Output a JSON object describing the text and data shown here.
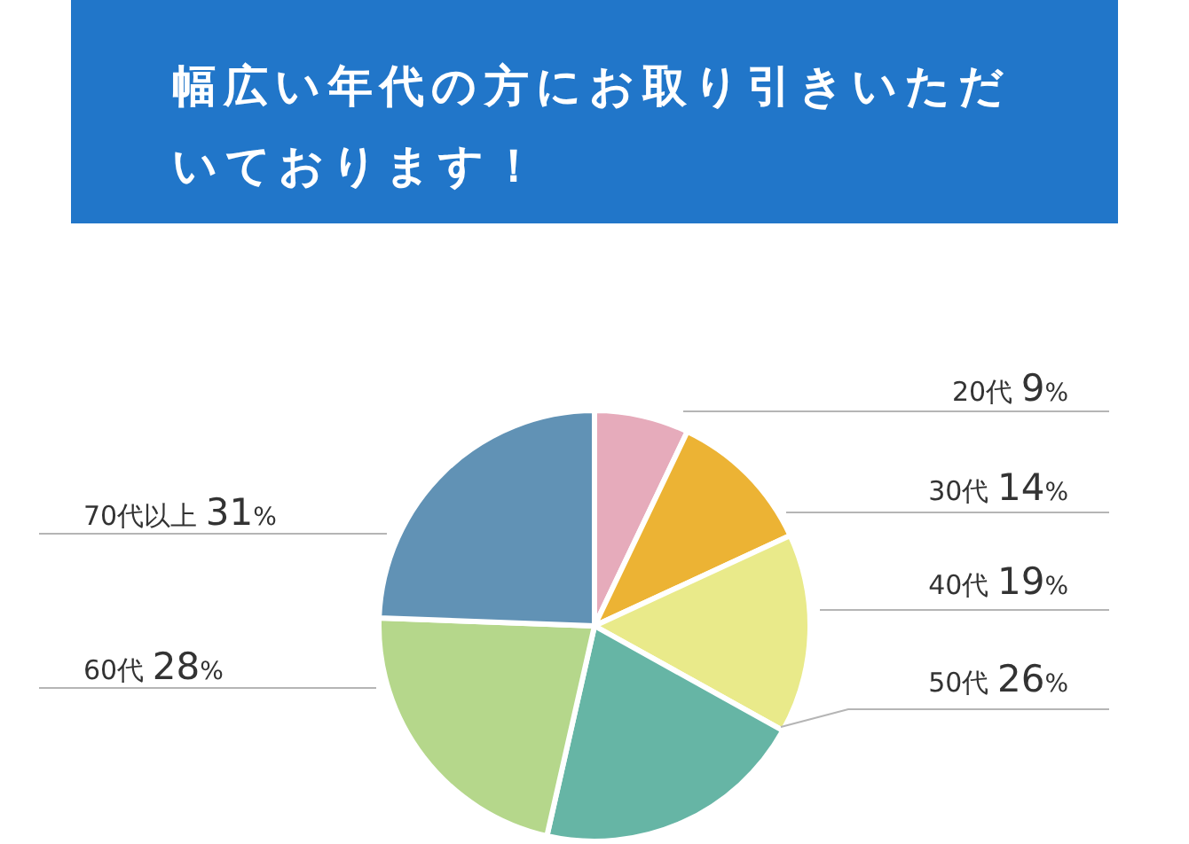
{
  "chart_data": {
    "type": "pie",
    "title": "幅広い年代の方にお取り引きいただいております！",
    "categories": [
      "20代",
      "30代",
      "40代",
      "50代",
      "60代",
      "70代以上"
    ],
    "values": [
      9,
      14,
      19,
      26,
      28,
      31
    ],
    "value_labels": [
      "9%",
      "14%",
      "19%",
      "26%",
      "28%",
      "31%"
    ],
    "colors": [
      "#e6abbb",
      "#ecb334",
      "#e9ea8a",
      "#66b5a5",
      "#b5d78b",
      "#6192b5"
    ],
    "legend": false
  }
}
